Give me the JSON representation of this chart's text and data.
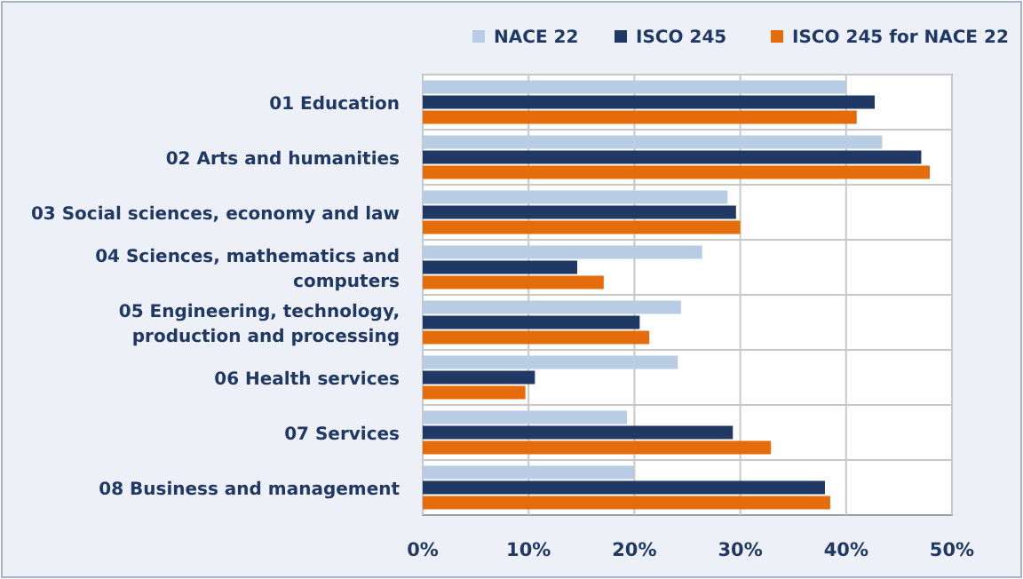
{
  "chart_data": {
    "type": "bar",
    "orientation": "horizontal",
    "categories": [
      "01 Education",
      "02 Arts and humanities",
      "03 Social sciences, economy and law",
      "04 Sciences, mathematics and computers",
      "05 Engineering, technology, production and processing",
      "06 Health services",
      "07 Services",
      "08 Business and management"
    ],
    "series": [
      {
        "name": "NACE 22",
        "color": "#b8cce4",
        "values": [
          40.0,
          43.4,
          28.8,
          26.4,
          24.4,
          24.1,
          19.3,
          20.0
        ]
      },
      {
        "name": "ISCO 245",
        "color": "#1f3864",
        "values": [
          42.7,
          47.1,
          29.6,
          14.6,
          20.5,
          10.6,
          29.3,
          38.0
        ]
      },
      {
        "name": "ISCO 245 for NACE 22",
        "color": "#e46c0a",
        "values": [
          41.0,
          47.9,
          30.0,
          17.1,
          21.4,
          9.7,
          32.9,
          38.5
        ]
      }
    ],
    "xlim": [
      0,
      50
    ],
    "xticks": [
      {
        "value": 0,
        "label": "0%"
      },
      {
        "value": 10,
        "label": "10%"
      },
      {
        "value": 20,
        "label": "20%"
      },
      {
        "value": 30,
        "label": "30%"
      },
      {
        "value": 40,
        "label": "40%"
      },
      {
        "value": 50,
        "label": "50%"
      }
    ],
    "grid": true,
    "legend": "top"
  }
}
